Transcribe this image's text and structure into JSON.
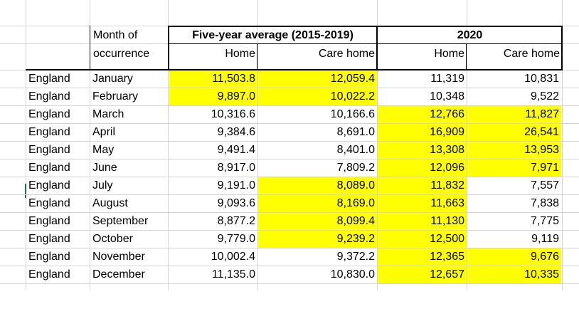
{
  "header": {
    "month_label_1": "Month of",
    "month_label_2": "occurrence",
    "group1": "Five-year average (2015-2019)",
    "group2": "2020",
    "col_home": "Home",
    "col_care": "Care home"
  },
  "rows": [
    {
      "region": "England",
      "month": "January",
      "avg_home": "11,503.8",
      "avg_care": "12,059.4",
      "y_home": "11,319",
      "y_care": "10,831"
    },
    {
      "region": "England",
      "month": "February",
      "avg_home": "9,897.0",
      "avg_care": "10,022.2",
      "y_home": "10,348",
      "y_care": "9,522"
    },
    {
      "region": "England",
      "month": "March",
      "avg_home": "10,316.6",
      "avg_care": "10,166.6",
      "y_home": "12,766",
      "y_care": "11,827"
    },
    {
      "region": "England",
      "month": "April",
      "avg_home": "9,384.6",
      "avg_care": "8,691.0",
      "y_home": "16,909",
      "y_care": "26,541"
    },
    {
      "region": "England",
      "month": "May",
      "avg_home": "9,491.4",
      "avg_care": "8,401.0",
      "y_home": "13,308",
      "y_care": "13,953"
    },
    {
      "region": "England",
      "month": "June",
      "avg_home": "8,917.0",
      "avg_care": "7,809.2",
      "y_home": "12,096",
      "y_care": "7,971"
    },
    {
      "region": "England",
      "month": "July",
      "avg_home": "9,191.0",
      "avg_care": "8,089.0",
      "y_home": "11,832",
      "y_care": "7,557"
    },
    {
      "region": "England",
      "month": "August",
      "avg_home": "9,093.6",
      "avg_care": "8,169.0",
      "y_home": "11,663",
      "y_care": "7,838"
    },
    {
      "region": "England",
      "month": "September",
      "avg_home": "8,877.2",
      "avg_care": "8,099.4",
      "y_home": "11,130",
      "y_care": "7,775"
    },
    {
      "region": "England",
      "month": "October",
      "avg_home": "9,779.0",
      "avg_care": "9,239.2",
      "y_home": "12,500",
      "y_care": "9,119"
    },
    {
      "region": "England",
      "month": "November",
      "avg_home": "10,002.4",
      "avg_care": "9,372.2",
      "y_home": "12,365",
      "y_care": "9,676"
    },
    {
      "region": "England",
      "month": "December",
      "avg_home": "11,135.0",
      "avg_care": "10,830.0",
      "y_home": "12,657",
      "y_care": "10,335"
    }
  ],
  "highlight_color": "#ffff00",
  "highlights": {
    "avg_home": [
      true,
      true,
      false,
      false,
      false,
      false,
      false,
      false,
      false,
      false,
      false,
      false
    ],
    "avg_care": [
      true,
      true,
      false,
      false,
      false,
      false,
      true,
      true,
      true,
      true,
      false,
      false
    ],
    "y_home": [
      false,
      false,
      true,
      true,
      true,
      true,
      true,
      true,
      true,
      true,
      true,
      true
    ],
    "y_care": [
      false,
      false,
      true,
      true,
      true,
      true,
      false,
      false,
      false,
      false,
      true,
      true
    ]
  }
}
